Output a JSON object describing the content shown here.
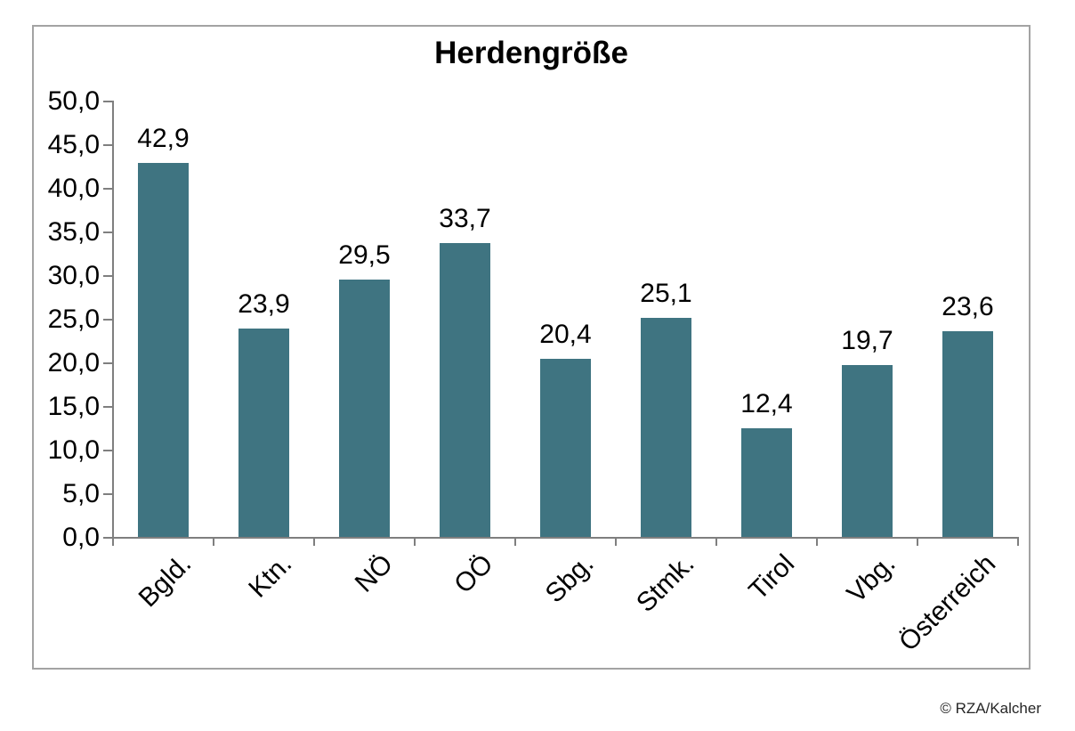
{
  "chart_data": {
    "type": "bar",
    "title": "Herdengröße",
    "categories": [
      "Bgld.",
      "Ktn.",
      "NÖ",
      "OÖ",
      "Sbg.",
      "Stmk.",
      "Tirol",
      "Vbg.",
      "Österreich"
    ],
    "values": [
      42.9,
      23.9,
      29.5,
      33.7,
      20.4,
      25.1,
      12.4,
      19.7,
      23.6
    ],
    "value_labels": [
      "42,9",
      "23,9",
      "29,5",
      "33,7",
      "20,4",
      "25,1",
      "12,4",
      "19,7",
      "23,6"
    ],
    "y_axis": {
      "ticks": [
        "50,0",
        "45,0",
        "40,0",
        "35,0",
        "30,0",
        "25,0",
        "20,0",
        "15,0",
        "10,0",
        "5,0",
        "0,0"
      ],
      "min": 0,
      "max": 50,
      "step": 5
    },
    "grid": false,
    "legend": false,
    "bar_color": "#3F7481",
    "axis_color": "#7F7F7F"
  },
  "footer": {
    "credit": "© RZA/Kalcher"
  }
}
